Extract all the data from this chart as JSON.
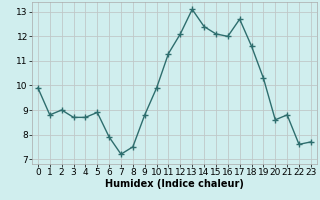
{
  "x": [
    0,
    1,
    2,
    3,
    4,
    5,
    6,
    7,
    8,
    9,
    10,
    11,
    12,
    13,
    14,
    15,
    16,
    17,
    18,
    19,
    20,
    21,
    22,
    23
  ],
  "y": [
    9.9,
    8.8,
    9.0,
    8.7,
    8.7,
    8.9,
    7.9,
    7.2,
    7.5,
    8.8,
    9.9,
    11.3,
    12.1,
    13.1,
    12.4,
    12.1,
    12.0,
    12.7,
    11.6,
    10.3,
    8.6,
    8.8,
    7.6,
    7.7
  ],
  "line_color": "#2e6e6e",
  "marker": "+",
  "marker_size": 4,
  "bg_color": "#d0eeee",
  "grid_color": "#c0c8c8",
  "xlabel": "Humidex (Indice chaleur)",
  "ylim": [
    6.8,
    13.4
  ],
  "xlim": [
    -0.5,
    23.5
  ],
  "yticks": [
    7,
    8,
    9,
    10,
    11,
    12,
    13
  ],
  "xticks": [
    0,
    1,
    2,
    3,
    4,
    5,
    6,
    7,
    8,
    9,
    10,
    11,
    12,
    13,
    14,
    15,
    16,
    17,
    18,
    19,
    20,
    21,
    22,
    23
  ],
  "xlabel_fontsize": 7,
  "tick_fontsize": 6.5,
  "line_width": 1.0
}
